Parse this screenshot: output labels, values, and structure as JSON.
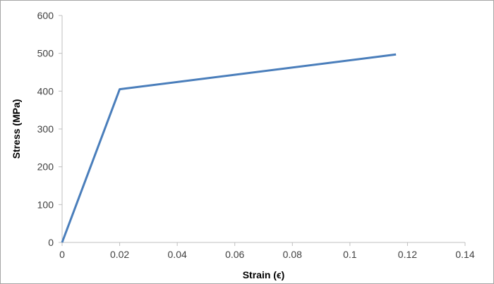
{
  "chart_data": {
    "type": "line",
    "title": "",
    "xlabel": "Strain (ϵ)",
    "ylabel": "Stress (MPa)",
    "xlim": [
      0,
      0.14
    ],
    "ylim": [
      0,
      600
    ],
    "x_ticks": [
      0,
      0.02,
      0.04,
      0.06,
      0.08,
      0.1,
      0.12,
      0.14
    ],
    "x_tick_labels": [
      "0",
      "0.02",
      "0.04",
      "0.06",
      "0.08",
      "0.1",
      "0.12",
      "0.14"
    ],
    "y_ticks": [
      0,
      100,
      200,
      300,
      400,
      500,
      600
    ],
    "y_tick_labels": [
      "0",
      "100",
      "200",
      "300",
      "400",
      "500",
      "600"
    ],
    "grid": false,
    "legend": "none",
    "series": [
      {
        "color": "#4a7ebb",
        "x": [
          0,
          0.02,
          0.116
        ],
        "y": [
          0,
          405,
          497
        ]
      }
    ]
  }
}
